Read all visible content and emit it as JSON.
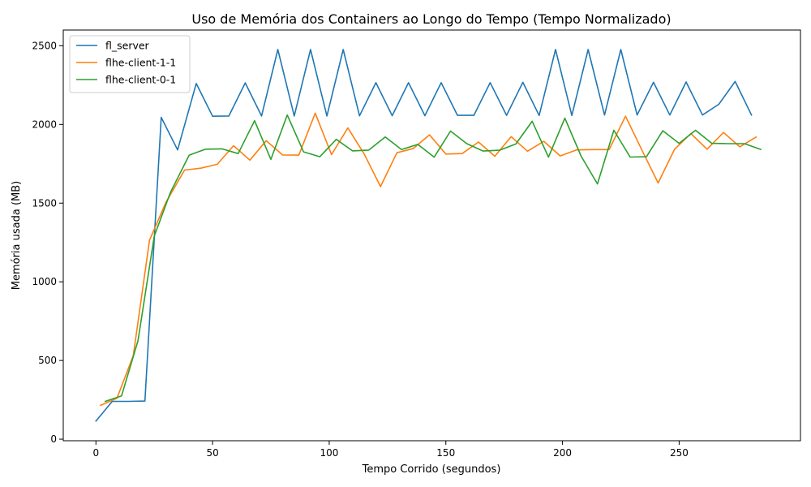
{
  "chart_data": {
    "type": "line",
    "title": "Uso de Memória dos Containers ao Longo do Tempo (Tempo Normalizado)",
    "xlabel": "Tempo Corrido (segundos)",
    "ylabel": "Memória usada (MB)",
    "xlim": [
      -14,
      302
    ],
    "ylim": [
      -10,
      2600
    ],
    "xticks": [
      0,
      50,
      100,
      150,
      200,
      250
    ],
    "yticks": [
      0,
      500,
      1000,
      1500,
      2000,
      2500
    ],
    "grid": false,
    "legend": "top-left",
    "series": [
      {
        "name": "fl_server",
        "color": "#1f77b4",
        "points": [
          [
            0,
            115
          ],
          [
            7,
            240
          ],
          [
            14,
            240
          ],
          [
            21,
            242
          ],
          [
            28,
            2045
          ],
          [
            35,
            1838
          ],
          [
            43,
            2260
          ],
          [
            50,
            2052
          ],
          [
            57,
            2054
          ],
          [
            64,
            2264
          ],
          [
            71,
            2054
          ],
          [
            78,
            2476
          ],
          [
            85,
            2054
          ],
          [
            92,
            2476
          ],
          [
            99,
            2054
          ],
          [
            106,
            2476
          ],
          [
            113,
            2055
          ],
          [
            120,
            2265
          ],
          [
            127,
            2056
          ],
          [
            134,
            2265
          ],
          [
            141,
            2056
          ],
          [
            148,
            2265
          ],
          [
            155,
            2058
          ],
          [
            162,
            2058
          ],
          [
            169,
            2266
          ],
          [
            176,
            2058
          ],
          [
            183,
            2268
          ],
          [
            190,
            2057
          ],
          [
            197,
            2476
          ],
          [
            204,
            2057
          ],
          [
            211,
            2476
          ],
          [
            218,
            2060
          ],
          [
            225,
            2476
          ],
          [
            232,
            2060
          ],
          [
            239,
            2268
          ],
          [
            246,
            2060
          ],
          [
            253,
            2270
          ],
          [
            260,
            2060
          ],
          [
            267,
            2128
          ],
          [
            274,
            2273
          ],
          [
            281,
            2060
          ]
        ]
      },
      {
        "name": "flhe-client-1-1",
        "color": "#ff7f0e",
        "points": [
          [
            2,
            215
          ],
          [
            9,
            260
          ],
          [
            16,
            530
          ],
          [
            23,
            1265
          ],
          [
            30,
            1505
          ],
          [
            38,
            1710
          ],
          [
            45,
            1722
          ],
          [
            52,
            1747
          ],
          [
            59,
            1865
          ],
          [
            66,
            1773
          ],
          [
            73,
            1897
          ],
          [
            80,
            1806
          ],
          [
            87,
            1805
          ],
          [
            94,
            2072
          ],
          [
            101,
            1808
          ],
          [
            108,
            1978
          ],
          [
            115,
            1812
          ],
          [
            122,
            1605
          ],
          [
            129,
            1820
          ],
          [
            136,
            1847
          ],
          [
            143,
            1934
          ],
          [
            150,
            1812
          ],
          [
            157,
            1815
          ],
          [
            164,
            1888
          ],
          [
            171,
            1798
          ],
          [
            178,
            1922
          ],
          [
            185,
            1830
          ],
          [
            192,
            1893
          ],
          [
            199,
            1800
          ],
          [
            206,
            1838
          ],
          [
            213,
            1840
          ],
          [
            220,
            1840
          ],
          [
            227,
            2052
          ],
          [
            234,
            1838
          ],
          [
            241,
            1628
          ],
          [
            248,
            1842
          ],
          [
            255,
            1942
          ],
          [
            262,
            1843
          ],
          [
            269,
            1949
          ],
          [
            276,
            1858
          ],
          [
            283,
            1920
          ]
        ]
      },
      {
        "name": "flhe-client-0-1",
        "color": "#2ca02c",
        "points": [
          [
            4,
            240
          ],
          [
            11,
            275
          ],
          [
            18,
            625
          ],
          [
            25,
            1290
          ],
          [
            32,
            1570
          ],
          [
            40,
            1805
          ],
          [
            47,
            1843
          ],
          [
            54,
            1845
          ],
          [
            61,
            1815
          ],
          [
            68,
            2024
          ],
          [
            75,
            1778
          ],
          [
            82,
            2060
          ],
          [
            89,
            1826
          ],
          [
            96,
            1795
          ],
          [
            103,
            1905
          ],
          [
            110,
            1832
          ],
          [
            117,
            1837
          ],
          [
            124,
            1920
          ],
          [
            131,
            1840
          ],
          [
            138,
            1873
          ],
          [
            145,
            1792
          ],
          [
            152,
            1958
          ],
          [
            159,
            1878
          ],
          [
            166,
            1831
          ],
          [
            173,
            1836
          ],
          [
            180,
            1876
          ],
          [
            187,
            2020
          ],
          [
            194,
            1792
          ],
          [
            201,
            2040
          ],
          [
            208,
            1798
          ],
          [
            215,
            1622
          ],
          [
            222,
            1963
          ],
          [
            229,
            1793
          ],
          [
            236,
            1795
          ],
          [
            243,
            1960
          ],
          [
            250,
            1880
          ],
          [
            257,
            1963
          ],
          [
            264,
            1880
          ],
          [
            271,
            1878
          ],
          [
            278,
            1878
          ],
          [
            285,
            1841
          ]
        ]
      }
    ]
  }
}
